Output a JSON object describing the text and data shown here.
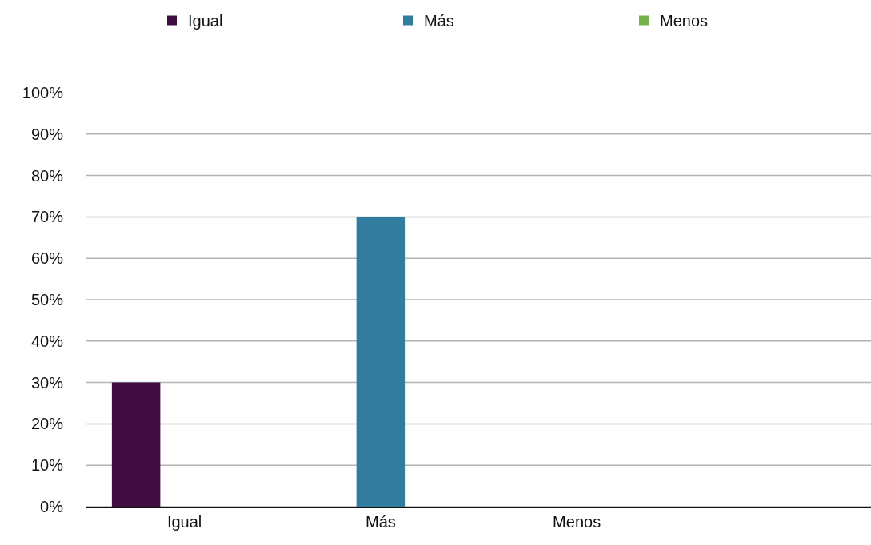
{
  "chart_data": {
    "type": "bar",
    "categories": [
      "Igual",
      "Más",
      "Menos",
      null
    ],
    "series": [
      {
        "name": "Igual",
        "color": "#400d40",
        "values": [
          30,
          null,
          null,
          null
        ]
      },
      {
        "name": "Más",
        "color": "#327d9e",
        "values": [
          null,
          70,
          null,
          null
        ]
      },
      {
        "name": "Menos",
        "color": "#74b14c",
        "values": [
          null,
          null,
          0,
          null
        ]
      }
    ],
    "ylim": [
      0,
      100
    ],
    "yticks": [
      {
        "value": 0,
        "label": "0%"
      },
      {
        "value": 10,
        "label": "10%"
      },
      {
        "value": 20,
        "label": "20%"
      },
      {
        "value": 30,
        "label": "30%"
      },
      {
        "value": 40,
        "label": "40%"
      },
      {
        "value": 50,
        "label": "50%"
      },
      {
        "value": 60,
        "label": "60%"
      },
      {
        "value": 70,
        "label": "70%"
      },
      {
        "value": 80,
        "label": "80%"
      },
      {
        "value": 90,
        "label": "90%"
      },
      {
        "value": 100,
        "label": "100%"
      }
    ],
    "grid": "y",
    "legend": "top"
  }
}
